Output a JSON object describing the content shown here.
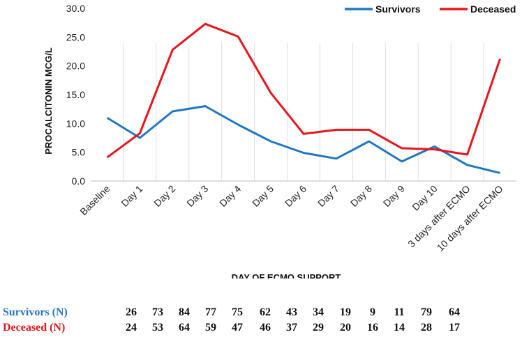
{
  "chart_data": {
    "type": "line",
    "categories": [
      "Baseline",
      "Day 1",
      "Day 2",
      "Day 3",
      "Day 4",
      "Day 5",
      "Day 6",
      "Day 7",
      "Day 8",
      "Day 9",
      "Day 10",
      "3 days after ECMO",
      "10 days after ECMO"
    ],
    "series": [
      {
        "name": "Survivors",
        "color": "#1f77c4",
        "values": [
          11.0,
          7.5,
          12.1,
          13.0,
          9.8,
          6.9,
          4.9,
          3.9,
          6.9,
          3.4,
          6.0,
          2.8,
          1.4
        ]
      },
      {
        "name": "Deceased",
        "color": "#e8141a",
        "values": [
          4.1,
          8.3,
          22.8,
          27.3,
          25.1,
          15.3,
          8.2,
          8.9,
          8.9,
          5.7,
          5.5,
          4.6,
          21.2
        ]
      }
    ],
    "xlabel": "DAY OF ECMO SUPPORT",
    "ylabel": "PROCALCITONIN  MCG/L",
    "ylim": [
      0,
      30
    ],
    "yticks": [
      "0.0",
      "5.0",
      "10.0",
      "15.0",
      "20.0",
      "25.0",
      "30.0"
    ],
    "grid": "vertical",
    "legend": "top-right"
  },
  "table": {
    "rows": [
      {
        "label": "Survivors (N)",
        "color": "#1f77c4",
        "counts": [
          "26",
          "73",
          "84",
          "77",
          "75",
          "62",
          "43",
          "34",
          "19",
          "9",
          "11",
          "79",
          "64"
        ]
      },
      {
        "label": "Deceased (N)",
        "color": "#e8141a",
        "counts": [
          "24",
          "53",
          "64",
          "59",
          "47",
          "46",
          "37",
          "29",
          "20",
          "16",
          "14",
          "28",
          "17"
        ]
      }
    ]
  }
}
